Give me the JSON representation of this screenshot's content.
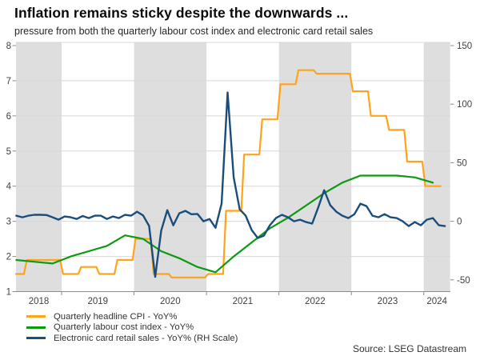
{
  "header": {
    "title": "Inflation remains sticky despite the downwards ...",
    "subtitle": "pressure from both the quarterly labour cost index and electronic card retail sales"
  },
  "source": "Source: LSEG Datastream",
  "legend": [
    {
      "label": "Quarterly headline CPI - YoY%",
      "color": "#ffa31a"
    },
    {
      "label": "Quarterly labour cost index - YoY%",
      "color": "#0c9a10"
    },
    {
      "label": "Electronic card retail sales - YoY% (RH Scale)",
      "color": "#1b4d7c"
    }
  ],
  "colors": {
    "band": "#dedede",
    "gridline": "#d8d8d8",
    "axis": "#8c8c8c",
    "axis_text": "#404040"
  },
  "chart_data": {
    "type": "line",
    "title": "Inflation remains sticky despite the downwards ...",
    "subtitle": "pressure from both the quarterly labour cost index and electronic card retail sales",
    "x_axis": {
      "labels": [
        "2018",
        "2019",
        "2020",
        "2021",
        "2022",
        "2023",
        "2024"
      ],
      "range": [
        2018.371,
        2024.363
      ],
      "year_ticks": [
        2019,
        2020,
        2021,
        2022,
        2023,
        2024
      ],
      "shaded_bands": [
        [
          2018.371,
          2019
        ],
        [
          2020,
          2021
        ],
        [
          2022,
          2023
        ],
        [
          2024,
          2024.363
        ]
      ]
    },
    "y_left": {
      "ticks": [
        1,
        2,
        3,
        4,
        5,
        6,
        7,
        8
      ],
      "range": [
        1,
        8
      ],
      "gridlines": [
        2,
        3,
        4,
        5,
        6,
        7
      ]
    },
    "y_right": {
      "ticks": [
        -50,
        0,
        50,
        100,
        150
      ],
      "range": [
        -60,
        150
      ]
    },
    "legend_position": "bottom-left",
    "series": [
      {
        "name": "Quarterly headline CPI - YoY%",
        "color": "#ffa31a",
        "axis": "left",
        "frequency": "quarterly",
        "style": "step",
        "start": 2018.25,
        "step": 0.25,
        "values": [
          1.5,
          1.9,
          1.9,
          1.5,
          1.7,
          1.5,
          1.9,
          2.5,
          1.5,
          1.4,
          1.4,
          1.5,
          3.3,
          4.9,
          5.9,
          6.9,
          7.3,
          7.2,
          7.2,
          6.7,
          6.0,
          5.6,
          4.7,
          4.0
        ]
      },
      {
        "name": "Quarterly labour cost index - YoY%",
        "color": "#0c9a10",
        "axis": "left",
        "frequency": "quarterly",
        "style": "line",
        "start": 2018.375,
        "step": 0.25,
        "values": [
          1.9,
          1.85,
          1.8,
          2.0,
          2.15,
          2.3,
          2.6,
          2.5,
          2.15,
          1.95,
          1.7,
          1.55,
          2.0,
          2.4,
          2.8,
          3.1,
          3.45,
          3.8,
          4.1,
          4.3,
          4.3,
          4.3,
          4.25,
          4.1
        ]
      },
      {
        "name": "Electronic card retail sales - YoY% (RH Scale)",
        "color": "#1b4d7c",
        "axis": "right",
        "frequency": "monthly",
        "style": "line",
        "start": 2018.375,
        "step": 0.0833333,
        "values": [
          4.8,
          3.4,
          4.8,
          5.5,
          5.5,
          5.3,
          3.4,
          1.4,
          4.1,
          3.4,
          2.0,
          4.5,
          2.7,
          4.8,
          4.8,
          2.0,
          4.1,
          2.7,
          5.5,
          4.8,
          8.2,
          5.0,
          -4.0,
          -47.5,
          -8.0,
          9.5,
          -3.4,
          6.8,
          8.9,
          6.0,
          6.3,
          0.0,
          2.0,
          -5.5,
          15.0,
          110.0,
          37.5,
          10.2,
          4.8,
          -7.5,
          -14.3,
          -12.3,
          -3.4,
          2.7,
          5.5,
          3.4,
          0.0,
          1.4,
          -0.7,
          -2.0,
          11.6,
          26.6,
          13.7,
          8.2,
          4.8,
          2.7,
          6.1,
          15.0,
          13.0,
          4.8,
          3.4,
          6.1,
          3.4,
          2.7,
          0.0,
          -4.1,
          -0.7,
          -3.4,
          1.4,
          2.7,
          -3.4,
          -4.1
        ]
      }
    ]
  }
}
